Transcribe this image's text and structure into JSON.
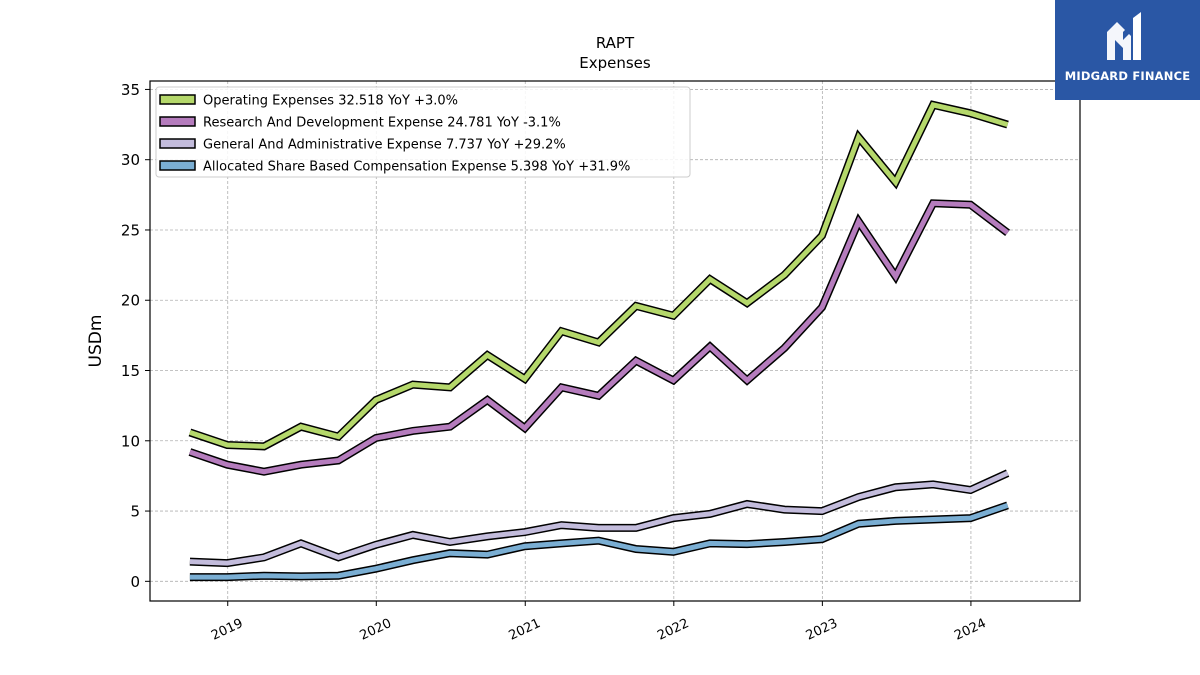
{
  "logo": {
    "name": "MIDGARD FINANCE",
    "icon": "midgard-m-logo-icon"
  },
  "chart_data": {
    "type": "line",
    "title": "RAPT",
    "subtitle": "Expenses",
    "xlabel": "",
    "ylabel": "USDm",
    "ylim": [
      -1.4,
      35.6
    ],
    "yticks": [
      0,
      5,
      10,
      15,
      20,
      25,
      30,
      35
    ],
    "xlim": [
      "2018-06-24",
      "2024-09-25"
    ],
    "xticks": [
      "2019",
      "2020",
      "2021",
      "2022",
      "2023",
      "2024"
    ],
    "grid": true,
    "legend_position": "top-left",
    "x": [
      "2018-09-30",
      "2018-12-31",
      "2019-03-31",
      "2019-06-30",
      "2019-09-30",
      "2019-12-31",
      "2020-03-31",
      "2020-06-30",
      "2020-09-30",
      "2020-12-31",
      "2021-03-31",
      "2021-06-30",
      "2021-09-30",
      "2021-12-31",
      "2022-03-31",
      "2022-06-30",
      "2022-09-30",
      "2022-12-31",
      "2023-03-31",
      "2023-06-30",
      "2023-09-30",
      "2023-12-31",
      "2024-03-31"
    ],
    "series": [
      {
        "name": "Operating Expenses",
        "legend": "Operating Expenses  32.518 YoY +3.0%",
        "color": "#b5d86b",
        "values": [
          10.6,
          9.7,
          9.6,
          11.0,
          10.3,
          12.9,
          14.0,
          13.8,
          16.1,
          14.4,
          17.8,
          17.0,
          19.6,
          18.9,
          21.5,
          19.8,
          21.8,
          24.6,
          31.6,
          28.4,
          33.9,
          33.3,
          32.5
        ]
      },
      {
        "name": "Research And Development Expense",
        "legend": "Research And Development Expense  24.781 YoY -3.1%",
        "color": "#b57cbd",
        "values": [
          9.2,
          8.3,
          7.8,
          8.3,
          8.6,
          10.2,
          10.7,
          11.0,
          12.9,
          10.9,
          13.8,
          13.2,
          15.7,
          14.3,
          16.7,
          14.3,
          16.6,
          19.5,
          25.6,
          21.7,
          26.9,
          26.8,
          24.8
        ]
      },
      {
        "name": "General And Administrative Expense",
        "legend": "General And Administrative Expense  7.737 YoY +29.2%",
        "color": "#c3bcdc",
        "values": [
          1.4,
          1.3,
          1.7,
          2.7,
          1.7,
          2.6,
          3.3,
          2.8,
          3.2,
          3.5,
          4.0,
          3.8,
          3.8,
          4.5,
          4.8,
          5.5,
          5.1,
          5.0,
          6.0,
          6.7,
          6.9,
          6.5,
          7.7
        ]
      },
      {
        "name": "Allocated Share Based Compensation Expense",
        "legend": "Allocated Share Based Compensation Expense  5.398 YoY +31.9%",
        "color": "#7aaed3",
        "values": [
          0.3,
          0.3,
          0.4,
          0.35,
          0.4,
          0.9,
          1.5,
          2.0,
          1.9,
          2.5,
          2.7,
          2.9,
          2.3,
          2.1,
          2.7,
          2.65,
          2.8,
          3.0,
          4.1,
          4.3,
          4.4,
          4.5,
          5.4
        ]
      }
    ]
  }
}
